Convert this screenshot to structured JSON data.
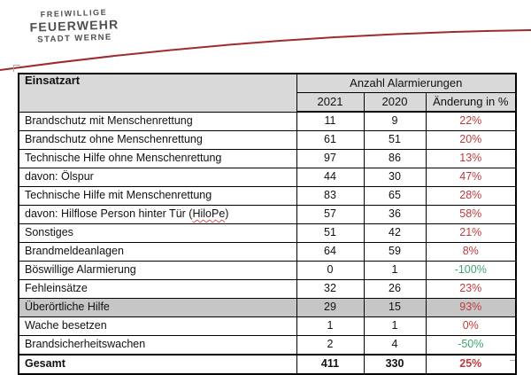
{
  "logo": {
    "line1": "FREIWILLIGE",
    "line2": "FEUERWEHR",
    "line3": "STADT WERNE"
  },
  "table": {
    "col_einsatzart": "Einsatzart",
    "group_header": "Anzahl Alarmierungen",
    "col_2021": "2021",
    "col_2020": "2020",
    "col_change": "Änderung in %",
    "rows": [
      {
        "label": "Brandschutz mit Menschenrettung",
        "y2021": "11",
        "y2020": "9",
        "change": "22%"
      },
      {
        "label": "Brandschutz ohne Menschenrettung",
        "y2021": "61",
        "y2020": "51",
        "change": "20%"
      },
      {
        "label": "Technische Hilfe ohne Menschenrettung",
        "y2021": "97",
        "y2020": "86",
        "change": "13%"
      },
      {
        "label": "davon: Ölspur",
        "y2021": "44",
        "y2020": "30",
        "change": "47%"
      },
      {
        "label": "Technische Hilfe mit Menschenrettung",
        "y2021": "83",
        "y2020": "65",
        "change": "28%"
      },
      {
        "label_pre": "davon: Hilflose Person hinter Tür (",
        "label_squiggle": "HiloPe",
        "label_post": ")",
        "y2021": "57",
        "y2020": "36",
        "change": "58%"
      },
      {
        "label": "Sonstiges",
        "y2021": "51",
        "y2020": "42",
        "change": "21%"
      },
      {
        "label": "Brandmeldeanlagen",
        "y2021": "64",
        "y2020": "59",
        "change": "8%"
      },
      {
        "label": "Böswillige Alarmierung",
        "y2021": "0",
        "y2020": "1",
        "change": "-100%"
      },
      {
        "label": "Fehleinsätze",
        "y2021": "32",
        "y2020": "26",
        "change": "23%"
      },
      {
        "label": "Überörtliche Hilfe",
        "y2021": "29",
        "y2020": "15",
        "change": "93%",
        "highlight": true
      },
      {
        "label": "Wache besetzen",
        "y2021": "1",
        "y2020": "1",
        "change": "0%"
      },
      {
        "label": "Brandsicherheitswachen",
        "y2021": "2",
        "y2020": "4",
        "change": "-50%"
      },
      {
        "label": "Gesamt",
        "y2021": "411",
        "y2020": "330",
        "change": "25%",
        "bold": true
      }
    ]
  },
  "colors": {
    "increase": "#bf3b3b",
    "decrease": "#3fa56d",
    "swoosh": "#9e2c2e",
    "header-bg": "#d9d9d9",
    "highlight-bg": "#c6c6c6"
  }
}
